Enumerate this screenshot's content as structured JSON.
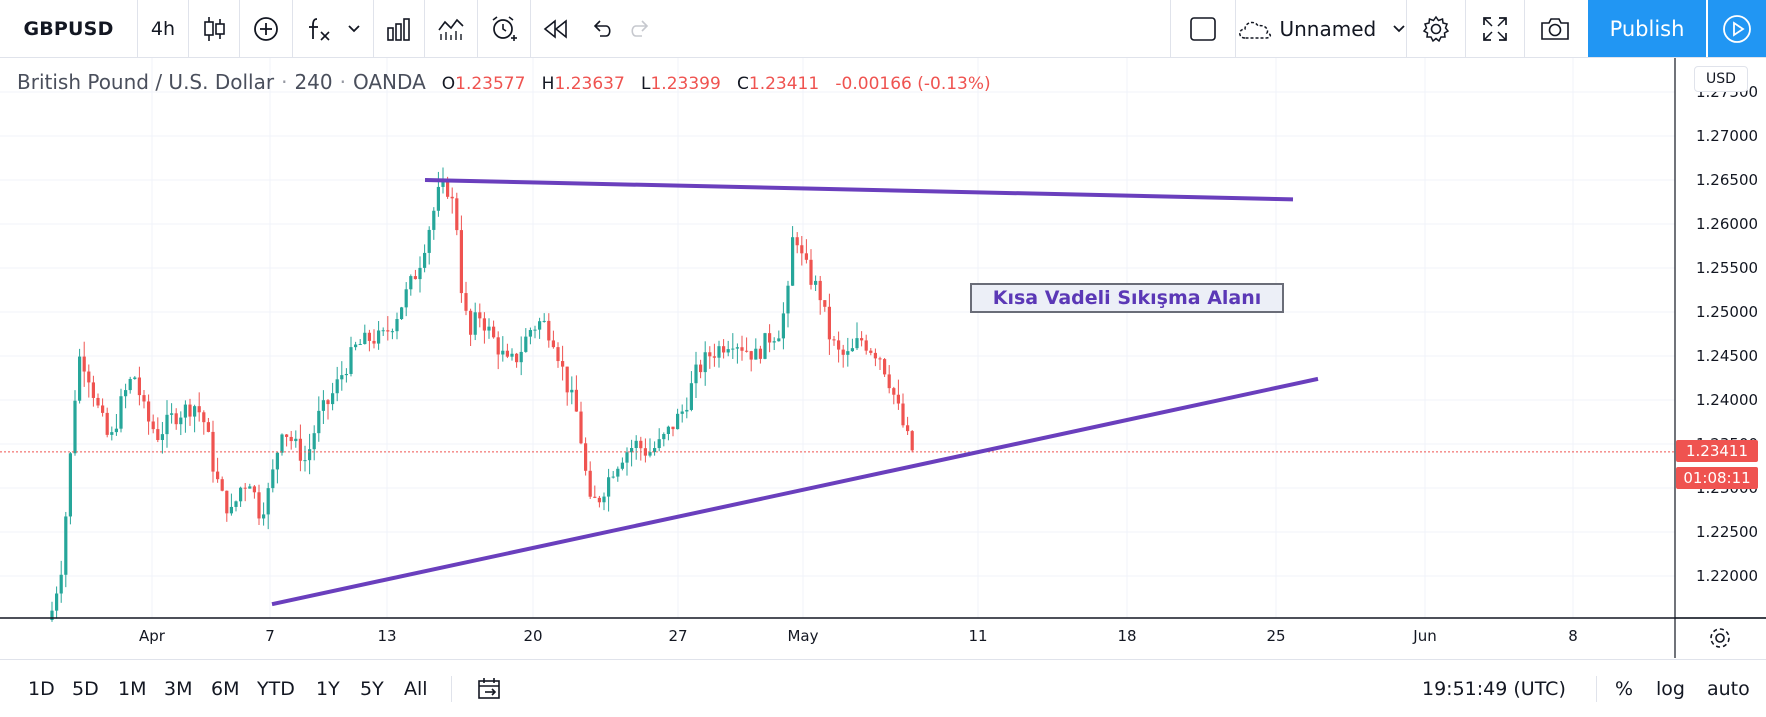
{
  "toolbar": {
    "symbol": "GBPUSD",
    "interval": "4h",
    "layout_name": "Unnamed",
    "publish_label": "Publish"
  },
  "legend": {
    "name": "British Pound / U.S. Dollar",
    "timeframe": "240",
    "exchange": "OANDA",
    "o_label": "O",
    "o_value": "1.23577",
    "h_label": "H",
    "h_value": "1.23637",
    "l_label": "L",
    "l_value": "1.23399",
    "c_label": "C",
    "c_value": "1.23411",
    "change": "-0.00166 (-0.13%)"
  },
  "price_axis": {
    "currency": "USD",
    "last_price": "1.23411",
    "countdown": "01:08:11"
  },
  "annotation": {
    "text": "Kısa Vadeli Sıkışma Alanı"
  },
  "bottombar": {
    "ranges": [
      "1D",
      "5D",
      "1M",
      "3M",
      "6M",
      "YTD",
      "1Y",
      "5Y",
      "All"
    ],
    "time": "19:51:49 (UTC)",
    "percent_label": "%",
    "log_label": "log",
    "auto_label": "auto"
  },
  "colors": {
    "up": "#26a69a",
    "down": "#ef5350",
    "trendline": "#6a3fbd",
    "accent": "#2196f3"
  },
  "chart_data": {
    "type": "candlestick",
    "symbol": "GBPUSD",
    "interval": "240",
    "y_ticks": [
      "1.22000",
      "1.22500",
      "1.23000",
      "1.23500",
      "1.24000",
      "1.24500",
      "1.25000",
      "1.25500",
      "1.26000",
      "1.26500",
      "1.27000",
      "1.27500"
    ],
    "x_ticks": [
      "Apr",
      "7",
      "13",
      "20",
      "27",
      "May",
      "11",
      "18",
      "25",
      "Jun",
      "8"
    ],
    "ylim": [
      1.2155,
      1.2785
    ],
    "last_price": 1.23411,
    "trendlines": [
      {
        "from": [
          "Apr 14",
          1.265
        ],
        "to": [
          "May 26",
          1.2628
        ]
      },
      {
        "from": [
          "Apr 7",
          1.2168
        ],
        "to": [
          "May 27",
          1.2425
        ]
      }
    ],
    "candles": []
  }
}
